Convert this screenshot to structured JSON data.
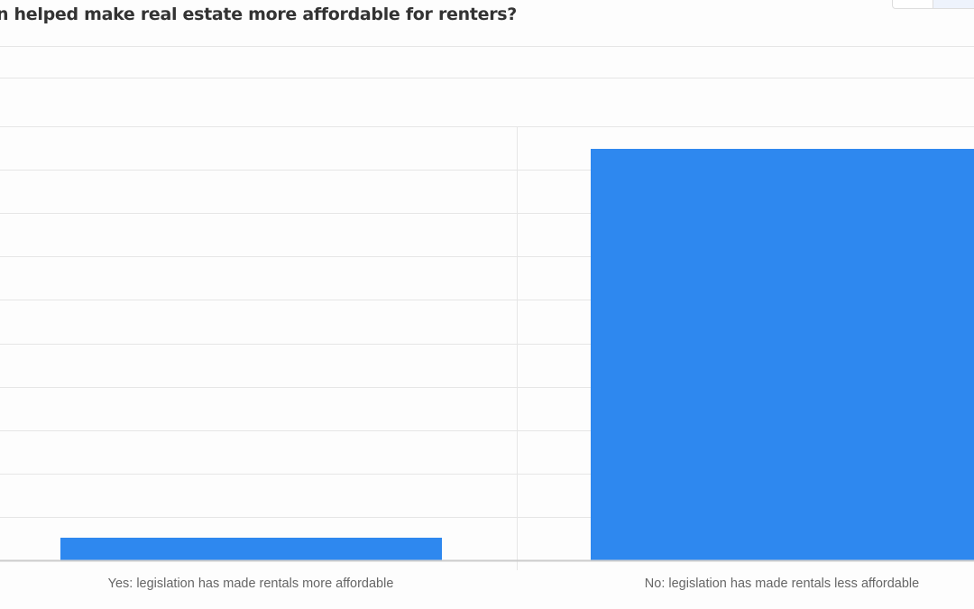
{
  "title": "n helped make real estate more affordable for renters?",
  "chart_data": {
    "type": "bar",
    "categories": [
      "Yes: legislation has made rentals more affordable",
      "No: legislation has made rentals less affordable"
    ],
    "values": [
      5.2,
      94.8
    ],
    "ylim": [
      0,
      100
    ],
    "grid": true,
    "bar_color": "#2e88ef"
  }
}
